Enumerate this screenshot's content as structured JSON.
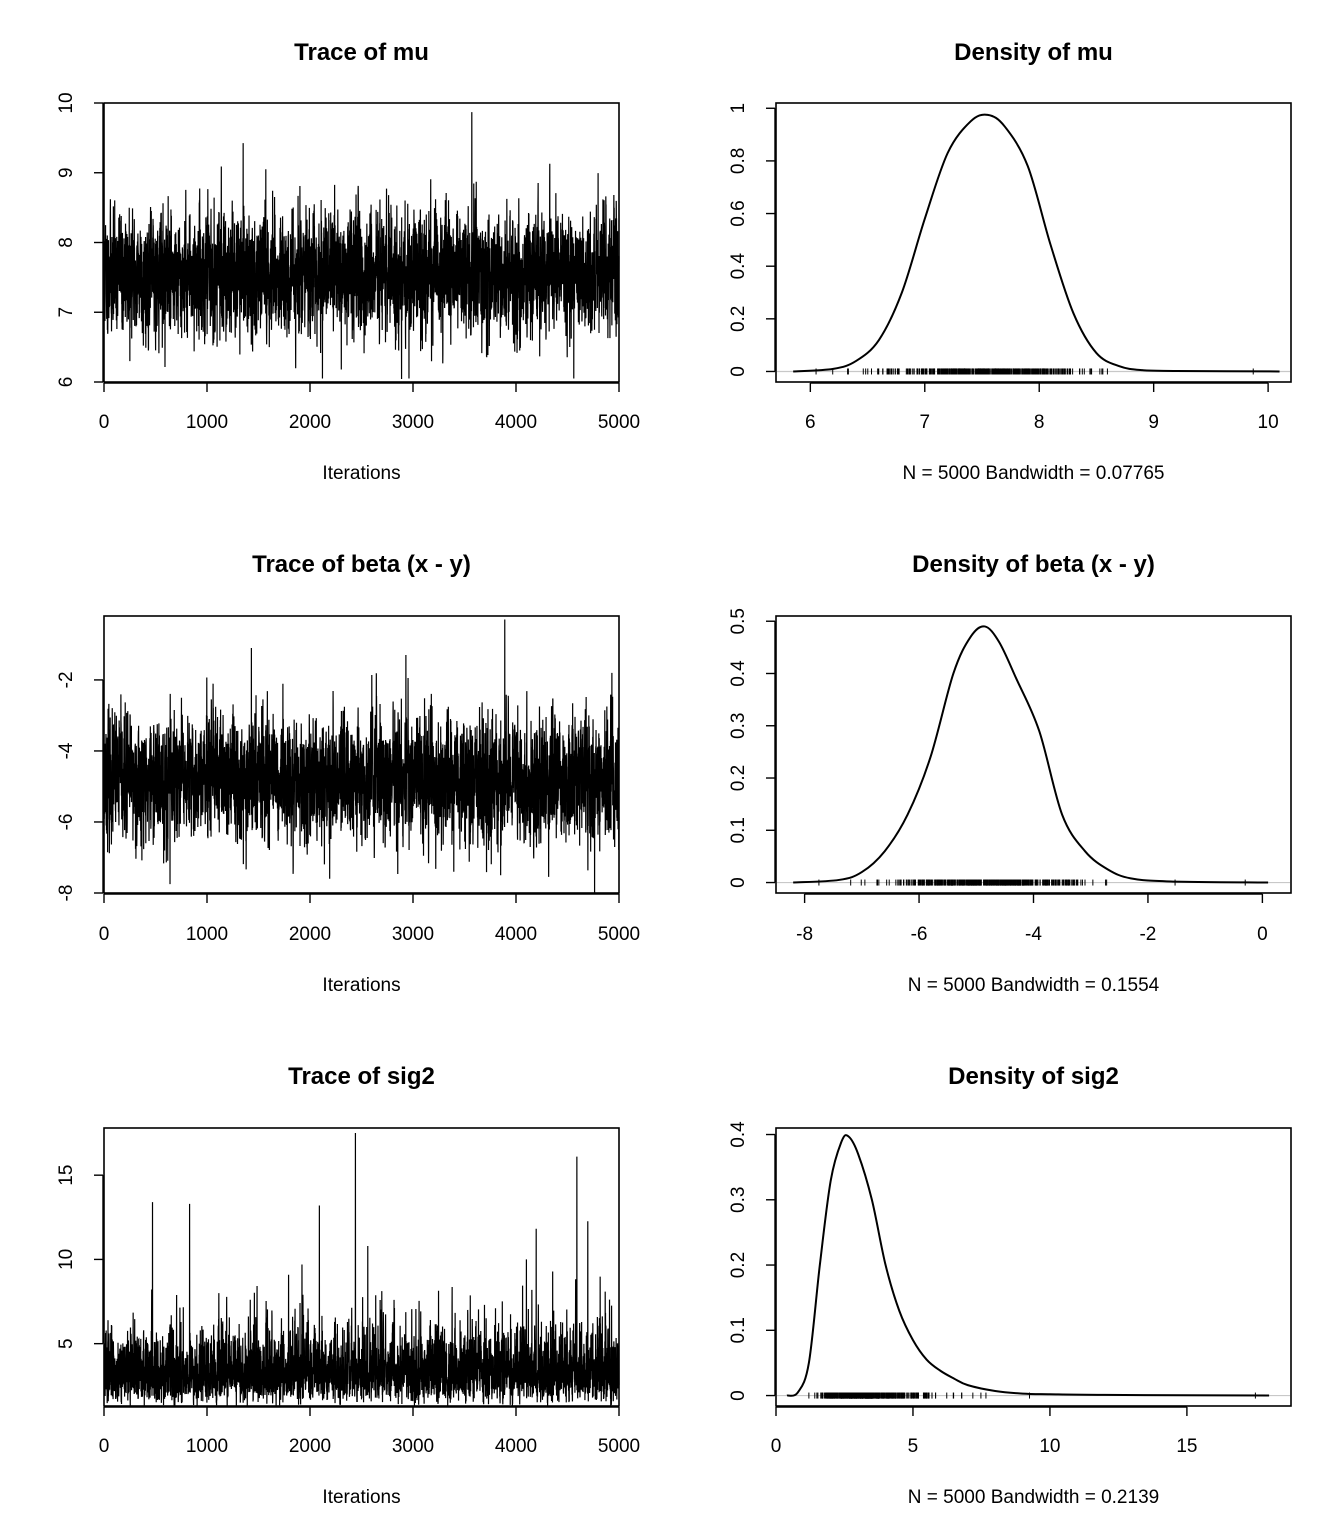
{
  "chart_data": [
    {
      "type": "line",
      "title": "Trace of mu",
      "xlabel": "Iterations",
      "ylabel": "",
      "xlim": [
        0,
        5000
      ],
      "ylim": [
        6,
        10
      ],
      "xticks": [
        0,
        1000,
        2000,
        3000,
        4000,
        5000
      ],
      "yticks": [
        6,
        7,
        8,
        9,
        10
      ],
      "trace": {
        "n": 5000,
        "center": 7.55,
        "sd": 0.42,
        "seed": 11,
        "spikes": [
          [
            3570,
            9.87
          ],
          [
            1570,
            9.05
          ],
          [
            2120,
            6.05
          ],
          [
            2960,
            6.05
          ],
          [
            4560,
            6.05
          ],
          [
            250,
            6.3
          ]
        ]
      }
    },
    {
      "type": "line",
      "title": "Density of mu",
      "xlabel": "N = 5000   Bandwidth = 0.07765",
      "ylabel": "",
      "xlim": [
        5.7,
        10.2
      ],
      "ylim": [
        -0.04,
        1.02
      ],
      "xticks": [
        6,
        7,
        8,
        9,
        10
      ],
      "yticks": [
        0.0,
        0.2,
        0.4,
        0.6,
        0.8,
        1.0
      ],
      "x": [
        5.85,
        6.2,
        6.4,
        6.6,
        6.8,
        7.0,
        7.2,
        7.4,
        7.55,
        7.7,
        7.9,
        8.1,
        8.3,
        8.5,
        8.7,
        8.9,
        9.2,
        10.1
      ],
      "y": [
        0.0,
        0.01,
        0.04,
        0.12,
        0.3,
        0.58,
        0.83,
        0.95,
        0.975,
        0.93,
        0.78,
        0.48,
        0.22,
        0.07,
        0.02,
        0.005,
        0.002,
        0.0
      ],
      "rug": {
        "center": 7.55,
        "sd": 0.42,
        "min": 6.05,
        "max": 9.87,
        "n": 500,
        "seed": 5
      }
    },
    {
      "type": "line",
      "title": "Trace of beta (x - y)",
      "xlabel": "Iterations",
      "ylabel": "",
      "xlim": [
        0,
        5000
      ],
      "ylim": [
        -8,
        -0.2
      ],
      "xticks": [
        0,
        1000,
        2000,
        3000,
        4000,
        5000
      ],
      "yticks": [
        -8,
        -6,
        -4,
        -2
      ],
      "trace": {
        "n": 5000,
        "center": -4.8,
        "sd": 0.82,
        "seed": 23,
        "spikes": [
          [
            3890,
            -0.3
          ],
          [
            1430,
            -1.1
          ],
          [
            2930,
            -1.3
          ],
          [
            4930,
            -1.8
          ],
          [
            640,
            -7.75
          ],
          [
            2190,
            -7.6
          ],
          [
            3850,
            -7.5
          ]
        ]
      }
    },
    {
      "type": "line",
      "title": "Density of beta (x - y)",
      "xlabel": "N = 5000   Bandwidth = 0.1554",
      "ylabel": "",
      "xlim": [
        -8.5,
        0.5
      ],
      "ylim": [
        -0.02,
        0.51
      ],
      "xticks": [
        -8,
        -6,
        -4,
        -2,
        0
      ],
      "yticks": [
        0.0,
        0.1,
        0.2,
        0.3,
        0.4,
        0.5
      ],
      "x": [
        -8.2,
        -7.4,
        -7.0,
        -6.6,
        -6.2,
        -5.8,
        -5.4,
        -5.1,
        -4.85,
        -4.6,
        -4.3,
        -3.9,
        -3.5,
        -3.1,
        -2.7,
        -2.3,
        -1.6,
        0.1
      ],
      "y": [
        0.0,
        0.005,
        0.02,
        0.06,
        0.13,
        0.24,
        0.4,
        0.47,
        0.49,
        0.46,
        0.39,
        0.29,
        0.13,
        0.06,
        0.025,
        0.008,
        0.002,
        0.0
      ],
      "rug": {
        "center": -4.8,
        "sd": 0.82,
        "min": -7.75,
        "max": -0.3,
        "n": 500,
        "seed": 9
      }
    },
    {
      "type": "line",
      "title": "Trace of sig2",
      "xlabel": "Iterations",
      "ylabel": "",
      "xlim": [
        0,
        5000
      ],
      "ylim": [
        1.3,
        17.8
      ],
      "xticks": [
        0,
        1000,
        2000,
        3000,
        4000,
        5000
      ],
      "yticks": [
        5,
        10,
        15
      ],
      "trace": {
        "n": 5000,
        "center": 3.2,
        "sd": 0.75,
        "seed": 37,
        "lognormal": true,
        "spikes": [
          [
            2440,
            17.5
          ],
          [
            4590,
            16.1
          ],
          [
            470,
            13.4
          ],
          [
            830,
            13.3
          ],
          [
            2090,
            13.2
          ],
          [
            2560,
            10.8
          ],
          [
            4100,
            10.0
          ]
        ]
      }
    },
    {
      "type": "line",
      "title": "Density of sig2",
      "xlabel": "N = 5000   Bandwidth = 0.2139",
      "ylabel": "",
      "xlim": [
        0,
        18.8
      ],
      "ylim": [
        -0.016,
        0.41
      ],
      "xticks": [
        0,
        5,
        10,
        15
      ],
      "yticks": [
        0.0,
        0.1,
        0.2,
        0.3,
        0.4
      ],
      "x": [
        0.4,
        0.8,
        1.2,
        1.6,
        2.0,
        2.4,
        2.65,
        3.0,
        3.5,
        4.0,
        4.5,
        5.0,
        5.5,
        6.0,
        6.5,
        7.0,
        8.0,
        9.0,
        10.0,
        12.0,
        18.0
      ],
      "y": [
        0.0,
        0.005,
        0.05,
        0.2,
        0.33,
        0.39,
        0.397,
        0.37,
        0.3,
        0.2,
        0.13,
        0.085,
        0.055,
        0.038,
        0.026,
        0.016,
        0.007,
        0.003,
        0.002,
        0.001,
        0.0
      ],
      "rug": {
        "center": 3.2,
        "sd": 0.75,
        "min": 1.2,
        "max": 17.5,
        "n": 500,
        "seed": 13,
        "lognormal": true
      }
    }
  ]
}
